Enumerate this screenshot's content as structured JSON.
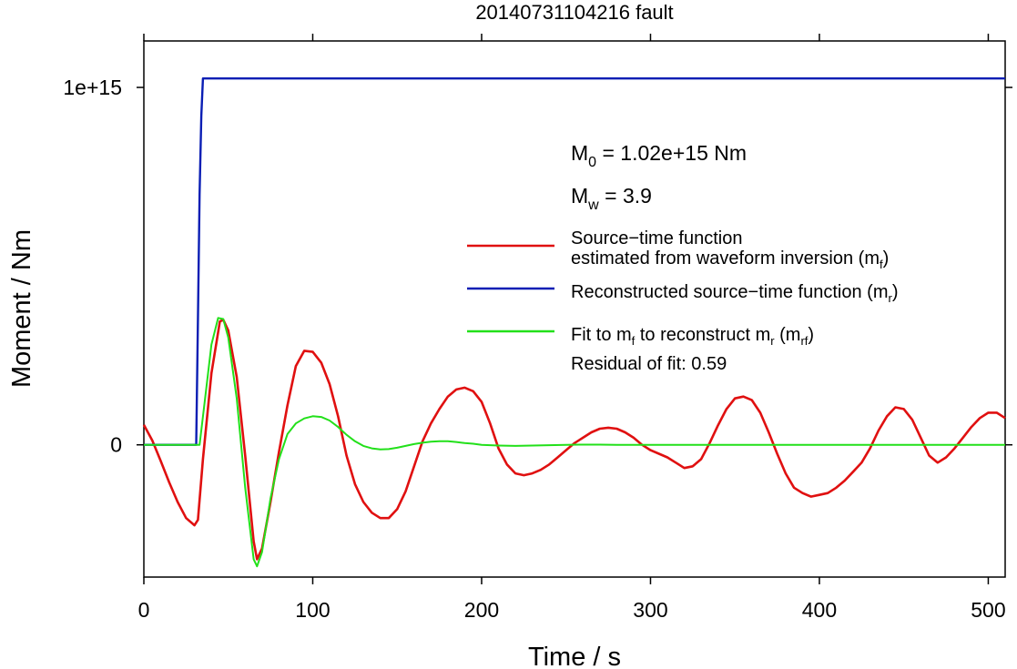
{
  "chart_data": {
    "type": "line",
    "title": "20140731104216 fault",
    "xlabel": "Time / s",
    "ylabel": "Moment / Nm",
    "xlim": [
      0,
      510
    ],
    "ylim": [
      -370000000000000.0,
      1130000000000000.0
    ],
    "x_ticks": [
      0,
      100,
      200,
      300,
      400,
      500
    ],
    "x_tick_labels": [
      "0",
      "100",
      "200",
      "300",
      "400",
      "500"
    ],
    "y_ticks": [
      0,
      1000000000000000.0
    ],
    "y_tick_labels": [
      "0",
      "1e+15"
    ],
    "grid": false,
    "legend_position": "right",
    "annotations": {
      "m0": {
        "sym": "M",
        "sub": "0",
        "rest": " = 1.02e+15 Nm"
      },
      "mw": {
        "sym": "M",
        "sub": "w",
        "rest": " = 3.9"
      },
      "residual": "Residual of fit: 0.59"
    },
    "series": [
      {
        "key": "red",
        "color": "#e01010",
        "legend_parts": [
          {
            "line": 1,
            "text": "Source−time function"
          },
          {
            "line": 2,
            "text": "estimated from waveform inversion (m"
          },
          {
            "line": 2,
            "text": "f",
            "sub": true
          },
          {
            "line": 2,
            "text": ")"
          }
        ],
        "x": [
          0,
          5,
          10,
          15,
          20,
          25,
          30,
          32,
          35,
          40,
          45,
          47,
          50,
          55,
          60,
          65,
          67,
          70,
          75,
          80,
          85,
          90,
          95,
          100,
          105,
          110,
          115,
          120,
          125,
          130,
          135,
          140,
          145,
          150,
          155,
          160,
          165,
          170,
          175,
          180,
          185,
          190,
          195,
          200,
          205,
          210,
          215,
          220,
          225,
          230,
          235,
          240,
          245,
          250,
          255,
          260,
          265,
          270,
          275,
          280,
          285,
          290,
          295,
          300,
          305,
          310,
          315,
          320,
          325,
          330,
          335,
          340,
          345,
          350,
          355,
          360,
          365,
          370,
          375,
          380,
          385,
          390,
          395,
          400,
          405,
          410,
          415,
          420,
          425,
          430,
          435,
          440,
          445,
          450,
          455,
          460,
          465,
          470,
          475,
          480,
          485,
          490,
          495,
          500,
          505,
          510
        ],
        "y": [
          56000000000000.0,
          12000000000000.0,
          -45000000000000.0,
          -105000000000000.0,
          -160000000000000.0,
          -205000000000000.0,
          -225000000000000.0,
          -210000000000000.0,
          -40000000000000.0,
          200000000000000.0,
          345000000000000.0,
          350000000000000.0,
          320000000000000.0,
          190000000000000.0,
          -30000000000000.0,
          -270000000000000.0,
          -320000000000000.0,
          -290000000000000.0,
          -160000000000000.0,
          -20000000000000.0,
          110000000000000.0,
          220000000000000.0,
          263000000000000.0,
          260000000000000.0,
          230000000000000.0,
          170000000000000.0,
          80000000000000.0,
          -30000000000000.0,
          -110000000000000.0,
          -160000000000000.0,
          -190000000000000.0,
          -205000000000000.0,
          -205000000000000.0,
          -180000000000000.0,
          -130000000000000.0,
          -60000000000000.0,
          10000000000000.0,
          60000000000000.0,
          100000000000000.0,
          135000000000000.0,
          155000000000000.0,
          160000000000000.0,
          150000000000000.0,
          120000000000000.0,
          60000000000000.0,
          -10000000000000.0,
          -55000000000000.0,
          -80000000000000.0,
          -85000000000000.0,
          -80000000000000.0,
          -70000000000000.0,
          -55000000000000.0,
          -35000000000000.0,
          -15000000000000.0,
          5000000000000.0,
          20000000000000.0,
          35000000000000.0,
          45000000000000.0,
          48000000000000.0,
          45000000000000.0,
          35000000000000.0,
          20000000000000.0,
          0,
          -15000000000000.0,
          -25000000000000.0,
          -35000000000000.0,
          -50000000000000.0,
          -65000000000000.0,
          -60000000000000.0,
          -40000000000000.0,
          5000000000000.0,
          55000000000000.0,
          100000000000000.0,
          130000000000000.0,
          135000000000000.0,
          125000000000000.0,
          90000000000000.0,
          35000000000000.0,
          -25000000000000.0,
          -80000000000000.0,
          -120000000000000.0,
          -135000000000000.0,
          -145000000000000.0,
          -140000000000000.0,
          -135000000000000.0,
          -120000000000000.0,
          -100000000000000.0,
          -75000000000000.0,
          -50000000000000.0,
          -10000000000000.0,
          40000000000000.0,
          80000000000000.0,
          105000000000000.0,
          100000000000000.0,
          70000000000000.0,
          20000000000000.0,
          -30000000000000.0,
          -50000000000000.0,
          -35000000000000.0,
          -10000000000000.0,
          20000000000000.0,
          50000000000000.0,
          75000000000000.0,
          90000000000000.0,
          90000000000000.0,
          75000000000000.0
        ]
      },
      {
        "key": "blue",
        "color": "#0a1eb4",
        "legend_parts": [
          {
            "line": 1,
            "text": "Reconstructed source−time function (m"
          },
          {
            "line": 1,
            "text": "r",
            "sub": true
          },
          {
            "line": 1,
            "text": ")"
          }
        ],
        "x": [
          0,
          31,
          32,
          33,
          34,
          35,
          510
        ],
        "y": [
          0,
          0,
          350000000000000.0,
          700000000000000.0,
          920000000000000.0,
          1025000000000000.0,
          1025000000000000.0
        ]
      },
      {
        "key": "green",
        "color": "#22e01a",
        "legend_parts": [
          {
            "line": 1,
            "text": "Fit to m"
          },
          {
            "line": 1,
            "text": "f",
            "sub": true
          },
          {
            "line": 1,
            "text": " to reconstruct m"
          },
          {
            "line": 1,
            "text": "r",
            "sub": true
          },
          {
            "line": 1,
            "text": " (m"
          },
          {
            "line": 1,
            "text": "rf",
            "sub": true
          },
          {
            "line": 1,
            "text": ")"
          }
        ],
        "x": [
          0,
          30,
          33,
          36,
          40,
          44,
          47,
          50,
          55,
          60,
          65,
          67,
          70,
          75,
          80,
          85,
          90,
          95,
          100,
          105,
          110,
          115,
          120,
          125,
          130,
          135,
          140,
          145,
          150,
          155,
          160,
          165,
          170,
          175,
          180,
          185,
          190,
          195,
          200,
          210,
          220,
          230,
          240,
          250,
          260,
          270,
          280,
          290,
          300,
          320,
          340,
          360,
          380,
          400,
          420,
          440,
          460,
          480,
          500,
          510
        ],
        "y": [
          0,
          0,
          0,
          120000000000000.0,
          280000000000000.0,
          355000000000000.0,
          352000000000000.0,
          300000000000000.0,
          130000000000000.0,
          -120000000000000.0,
          -320000000000000.0,
          -340000000000000.0,
          -300000000000000.0,
          -150000000000000.0,
          -40000000000000.0,
          30000000000000.0,
          60000000000000.0,
          74000000000000.0,
          80000000000000.0,
          78000000000000.0,
          68000000000000.0,
          50000000000000.0,
          28000000000000.0,
          10000000000000.0,
          -3000000000000.0,
          -10000000000000.0,
          -13000000000000.0,
          -12000000000000.0,
          -8000000000000.0,
          -3000000000000.0,
          2000000000000.0,
          6000000000000.0,
          9000000000000.0,
          10000000000000.0,
          10000000000000.0,
          8000000000000.0,
          5000000000000.0,
          3000000000000.0,
          0,
          -2000000000000.0,
          -3000000000000.0,
          -2000000000000.0,
          -1000000000000.0,
          0,
          500000000000.0,
          500000000000.0,
          0,
          0,
          0,
          0,
          0,
          0,
          0,
          0,
          0,
          0,
          0,
          0,
          0,
          0
        ]
      }
    ]
  }
}
